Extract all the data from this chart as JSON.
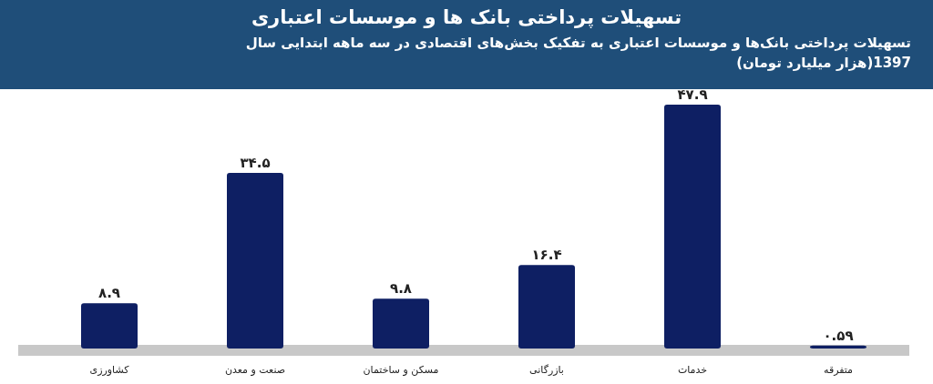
{
  "chart_data": {
    "type": "bar",
    "title": "تسهیلات پرداختی بانک ها و موسسات اعتباری",
    "subtitle": "تسهیلات پرداختی بانک‌ها و موسسات اعتباری به تفکیک بخش‌های اقتصادی در سه ماهه ابتدایی سال 1397(هزار میلیارد تومان)",
    "categories": [
      "کشاورزی",
      "صنعت و معدن",
      "مسکن و ساختمان",
      "بازرگانی",
      "خدمات",
      "متفرقه"
    ],
    "values": [
      8.9,
      34.5,
      9.8,
      16.4,
      47.9,
      0.59
    ],
    "value_labels": [
      "۸.۹",
      "۳۴.۵",
      "۹.۸",
      "۱۶.۴",
      "۴۷.۹",
      "۰.۵۹"
    ],
    "color": "#0e1f63"
  }
}
